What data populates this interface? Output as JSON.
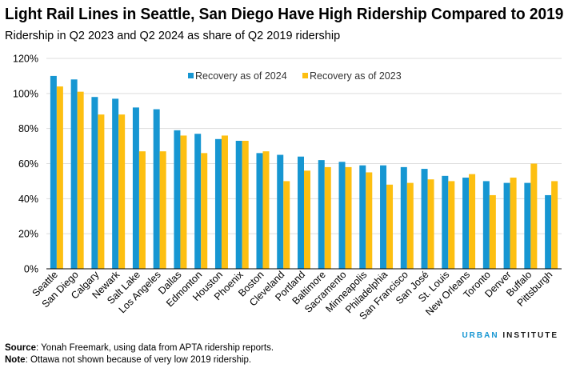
{
  "chart_data": {
    "type": "bar",
    "title": "Light Rail Lines in Seattle, San Diego Have High Ridership Compared to 2019",
    "subtitle": "Ridership in Q2 2023 and Q2 2024 as share of Q2 2019 ridership",
    "categories": [
      "Seattle",
      "San Diego",
      "Calgary",
      "Newark",
      "Salt Lake",
      "Los Angeles",
      "Dallas",
      "Edmonton",
      "Houston",
      "Phoenix",
      "Boston",
      "Cleveland",
      "Portland",
      "Baltimore",
      "Sacramento",
      "Minneapolis",
      "Philadelphia",
      "San Francisco",
      "San José",
      "St. Louis",
      "New Orleans",
      "Toronto",
      "Denver",
      "Buffalo",
      "Pittsburgh"
    ],
    "series": [
      {
        "name": "Recovery as of 2024",
        "color": "#1696d2",
        "values": [
          110,
          108,
          98,
          97,
          92,
          91,
          79,
          77,
          74,
          73,
          66,
          65,
          64,
          62,
          61,
          59,
          59,
          58,
          57,
          53,
          52,
          50,
          49,
          49,
          42
        ]
      },
      {
        "name": "Recovery as of 2023",
        "color": "#fdbf11",
        "values": [
          104,
          101,
          88,
          88,
          67,
          67,
          76,
          66,
          76,
          73,
          67,
          50,
          56,
          58,
          58,
          55,
          48,
          49,
          51,
          50,
          54,
          42,
          52,
          60,
          50
        ]
      }
    ],
    "yticks": [
      "0%",
      "20%",
      "40%",
      "60%",
      "80%",
      "100%",
      "120%"
    ],
    "ylim": [
      0,
      120
    ],
    "grid": true,
    "legend": "top-center"
  },
  "footer": {
    "source_label": "Source",
    "source_text": ": Yonah Freemark, using data from APTA ridership reports.",
    "note_label": "Note",
    "note_text": ": Ottawa not shown because of very low 2019 ridership."
  },
  "logo": {
    "part1": "URBAN",
    "part2": " INSTITUTE"
  }
}
